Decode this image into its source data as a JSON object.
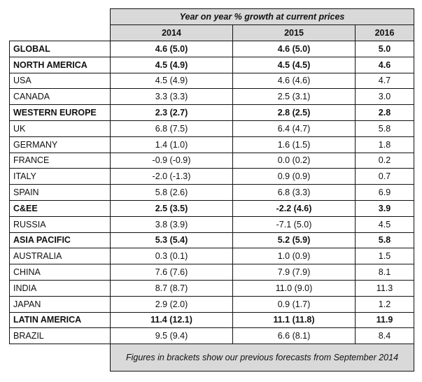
{
  "table": {
    "title": "Year on year % growth at current prices",
    "columns": [
      "2014",
      "2015",
      "2016"
    ],
    "rows": [
      {
        "label": "GLOBAL",
        "bold": true,
        "values": [
          "4.6 (5.0)",
          "4.6 (5.0)",
          "5.0"
        ]
      },
      {
        "label": "NORTH AMERICA",
        "bold": true,
        "values": [
          "4.5 (4.9)",
          "4.5 (4.5)",
          "4.6"
        ]
      },
      {
        "label": "USA",
        "bold": false,
        "values": [
          "4.5 (4.9)",
          "4.6 (4.6)",
          "4.7"
        ]
      },
      {
        "label": "CANADA",
        "bold": false,
        "values": [
          "3.3 (3.3)",
          "2.5 (3.1)",
          "3.0"
        ]
      },
      {
        "label": "WESTERN EUROPE",
        "bold": true,
        "values": [
          "2.3 (2.7)",
          "2.8 (2.5)",
          "2.8"
        ]
      },
      {
        "label": "UK",
        "bold": false,
        "values": [
          "6.8 (7.5)",
          "6.4 (4.7)",
          "5.8"
        ]
      },
      {
        "label": "GERMANY",
        "bold": false,
        "values": [
          "1.4 (1.0)",
          "1.6 (1.5)",
          "1.8"
        ]
      },
      {
        "label": "FRANCE",
        "bold": false,
        "values": [
          "-0.9 (-0.9)",
          "0.0 (0.2)",
          "0.2"
        ]
      },
      {
        "label": "ITALY",
        "bold": false,
        "values": [
          "-2.0 (-1.3)",
          "0.9 (0.9)",
          "0.7"
        ]
      },
      {
        "label": "SPAIN",
        "bold": false,
        "values": [
          "5.8 (2.6)",
          "6.8 (3.3)",
          "6.9"
        ]
      },
      {
        "label": "C&EE",
        "bold": true,
        "values": [
          "2.5 (3.5)",
          "-2.2 (4.6)",
          "3.9"
        ]
      },
      {
        "label": "RUSSIA",
        "bold": false,
        "values": [
          "3.8 (3.9)",
          "-7.1 (5.0)",
          "4.5"
        ]
      },
      {
        "label": "ASIA PACIFIC",
        "bold": true,
        "values": [
          "5.3 (5.4)",
          "5.2 (5.9)",
          "5.8"
        ]
      },
      {
        "label": "AUSTRALIA",
        "bold": false,
        "values": [
          "0.3 (0.1)",
          "1.0 (0.9)",
          "1.5"
        ]
      },
      {
        "label": "CHINA",
        "bold": false,
        "values": [
          "7.6 (7.6)",
          "7.9 (7.9)",
          "8.1"
        ]
      },
      {
        "label": "INDIA",
        "bold": false,
        "values": [
          "8.7 (8.7)",
          "11.0 (9.0)",
          "11.3"
        ]
      },
      {
        "label": "JAPAN",
        "bold": false,
        "values": [
          "2.9 (2.0)",
          "0.9 (1.7)",
          "1.2"
        ]
      },
      {
        "label": "LATIN AMERICA",
        "bold": true,
        "values": [
          "11.4 (12.1)",
          "11.1 (11.8)",
          "11.9"
        ]
      },
      {
        "label": "BRAZIL",
        "bold": false,
        "values": [
          "9.5 (9.4)",
          "6.6 (8.1)",
          "8.4"
        ]
      }
    ],
    "footnote": "Figures in brackets show our previous forecasts from September 2014"
  }
}
